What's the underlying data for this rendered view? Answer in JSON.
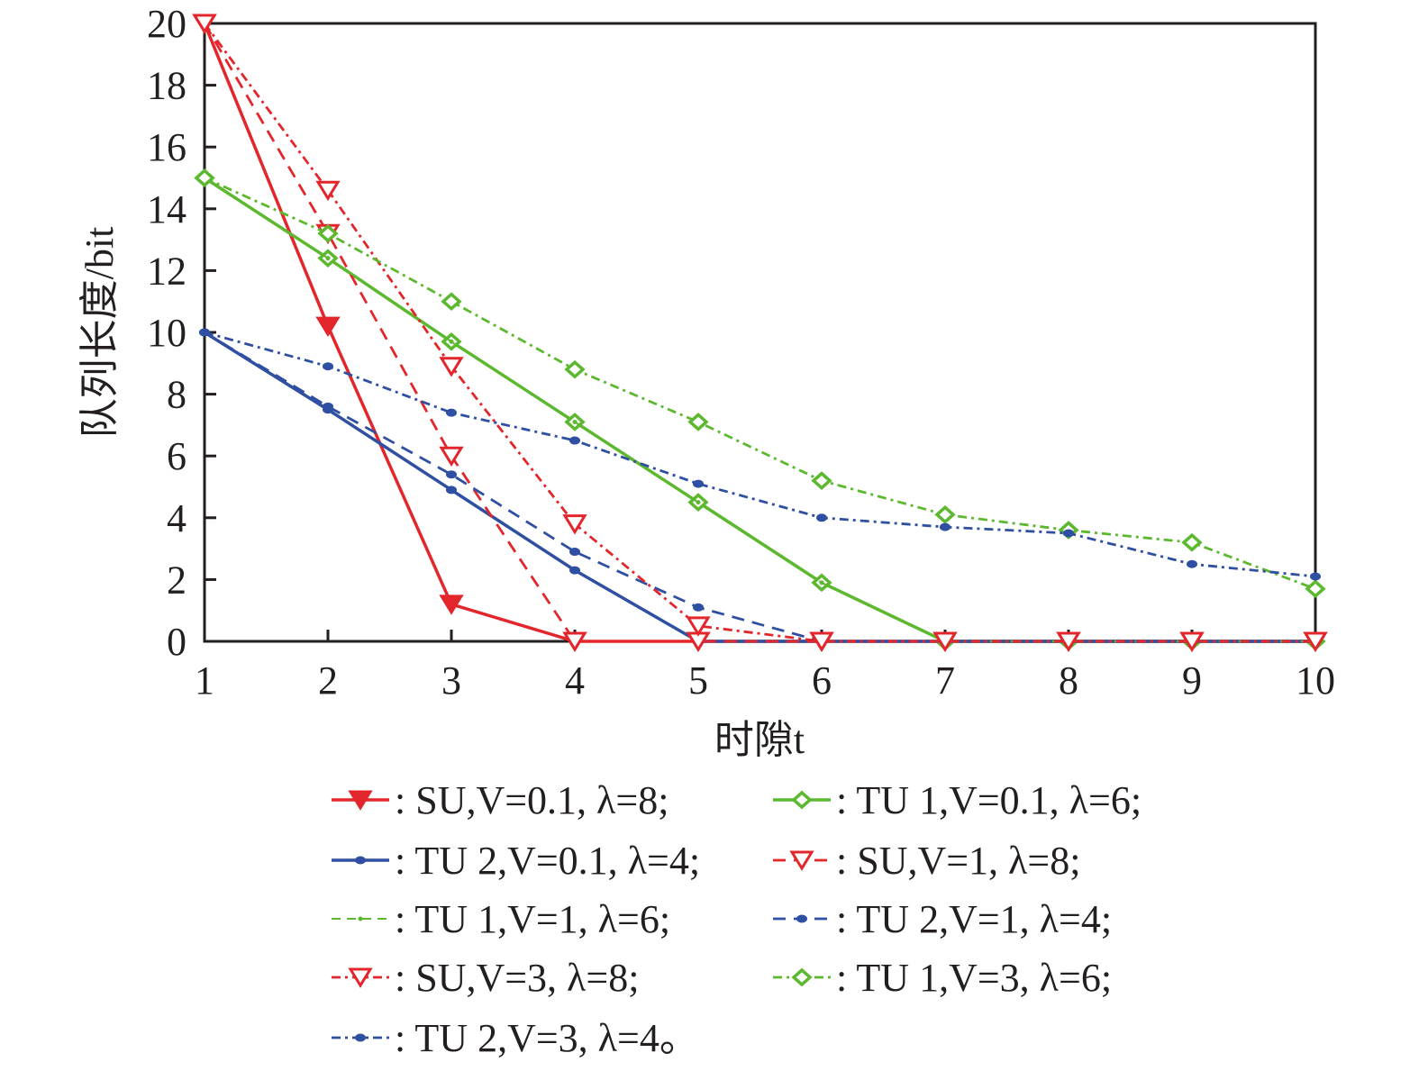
{
  "chart_data": {
    "type": "line",
    "title": "",
    "xlabel": "时隙t",
    "ylabel": "队列长度/bit",
    "xlim": [
      1,
      10
    ],
    "ylim": [
      0,
      20
    ],
    "x": [
      1,
      2,
      3,
      4,
      5,
      6,
      7,
      8,
      9,
      10
    ],
    "xticks": [
      "1",
      "2",
      "3",
      "4",
      "5",
      "6",
      "7",
      "8",
      "9",
      "10"
    ],
    "yticks": [
      "0",
      "2",
      "4",
      "6",
      "8",
      "10",
      "12",
      "14",
      "16",
      "18",
      "20"
    ],
    "grid": false,
    "legend_position": "bottom",
    "series": [
      {
        "name": "SU,V=0.1, λ=8;",
        "color": "#e3262b",
        "dash": "solid",
        "marker": "triangle-down-filled",
        "values": [
          20,
          10.2,
          1.2,
          0,
          0,
          0,
          0,
          0,
          0,
          0
        ]
      },
      {
        "name": "TU 1,V=0.1, λ=6;",
        "color": "#5cb82e",
        "dash": "solid",
        "marker": "diamond",
        "values": [
          15,
          12.4,
          9.7,
          7.1,
          4.5,
          1.9,
          0,
          0,
          0,
          0
        ]
      },
      {
        "name": "TU 2,V=0.1, λ=4;",
        "color": "#2f4fa2",
        "dash": "solid",
        "marker": "dot",
        "values": [
          10,
          7.5,
          4.9,
          2.3,
          0,
          0,
          0,
          0,
          0,
          0
        ]
      },
      {
        "name": "SU,V=1, λ=8;",
        "color": "#e3262b",
        "dash": "dashed",
        "marker": "triangle-down-hollow",
        "values": [
          20,
          13.2,
          6.0,
          0,
          0,
          0,
          0,
          0,
          0,
          0
        ]
      },
      {
        "name": "TU 1,V=1, λ=6;",
        "color": "#5cb82e",
        "dash": "dashed-thin",
        "marker": "small",
        "values": [
          15,
          12.4,
          9.7,
          7.1,
          4.5,
          1.9,
          0,
          0,
          0,
          0
        ]
      },
      {
        "name": "TU 2,V=1, λ=4;",
        "color": "#2f4fa2",
        "dash": "dashed",
        "marker": "dot",
        "values": [
          10,
          7.6,
          5.4,
          2.9,
          1.1,
          0,
          0,
          0,
          0,
          0
        ]
      },
      {
        "name": "SU,V=3, λ=8;",
        "color": "#e3262b",
        "dash": "dashdot",
        "marker": "triangle-down-hollow",
        "values": [
          20,
          14.6,
          8.9,
          3.8,
          0.5,
          0,
          0,
          0,
          0,
          0
        ]
      },
      {
        "name": "TU 1,V=3, λ=6;",
        "color": "#5cb82e",
        "dash": "dashdot",
        "marker": "diamond-hollow",
        "values": [
          15,
          13.2,
          11.0,
          8.8,
          7.1,
          5.2,
          4.1,
          3.6,
          3.2,
          1.7
        ]
      },
      {
        "name": "TU 2,V=3, λ=4。",
        "color": "#2f4fa2",
        "dash": "dashdot",
        "marker": "dot",
        "values": [
          10,
          8.9,
          7.4,
          6.5,
          5.1,
          4.0,
          3.7,
          3.5,
          2.5,
          2.1
        ]
      }
    ]
  }
}
